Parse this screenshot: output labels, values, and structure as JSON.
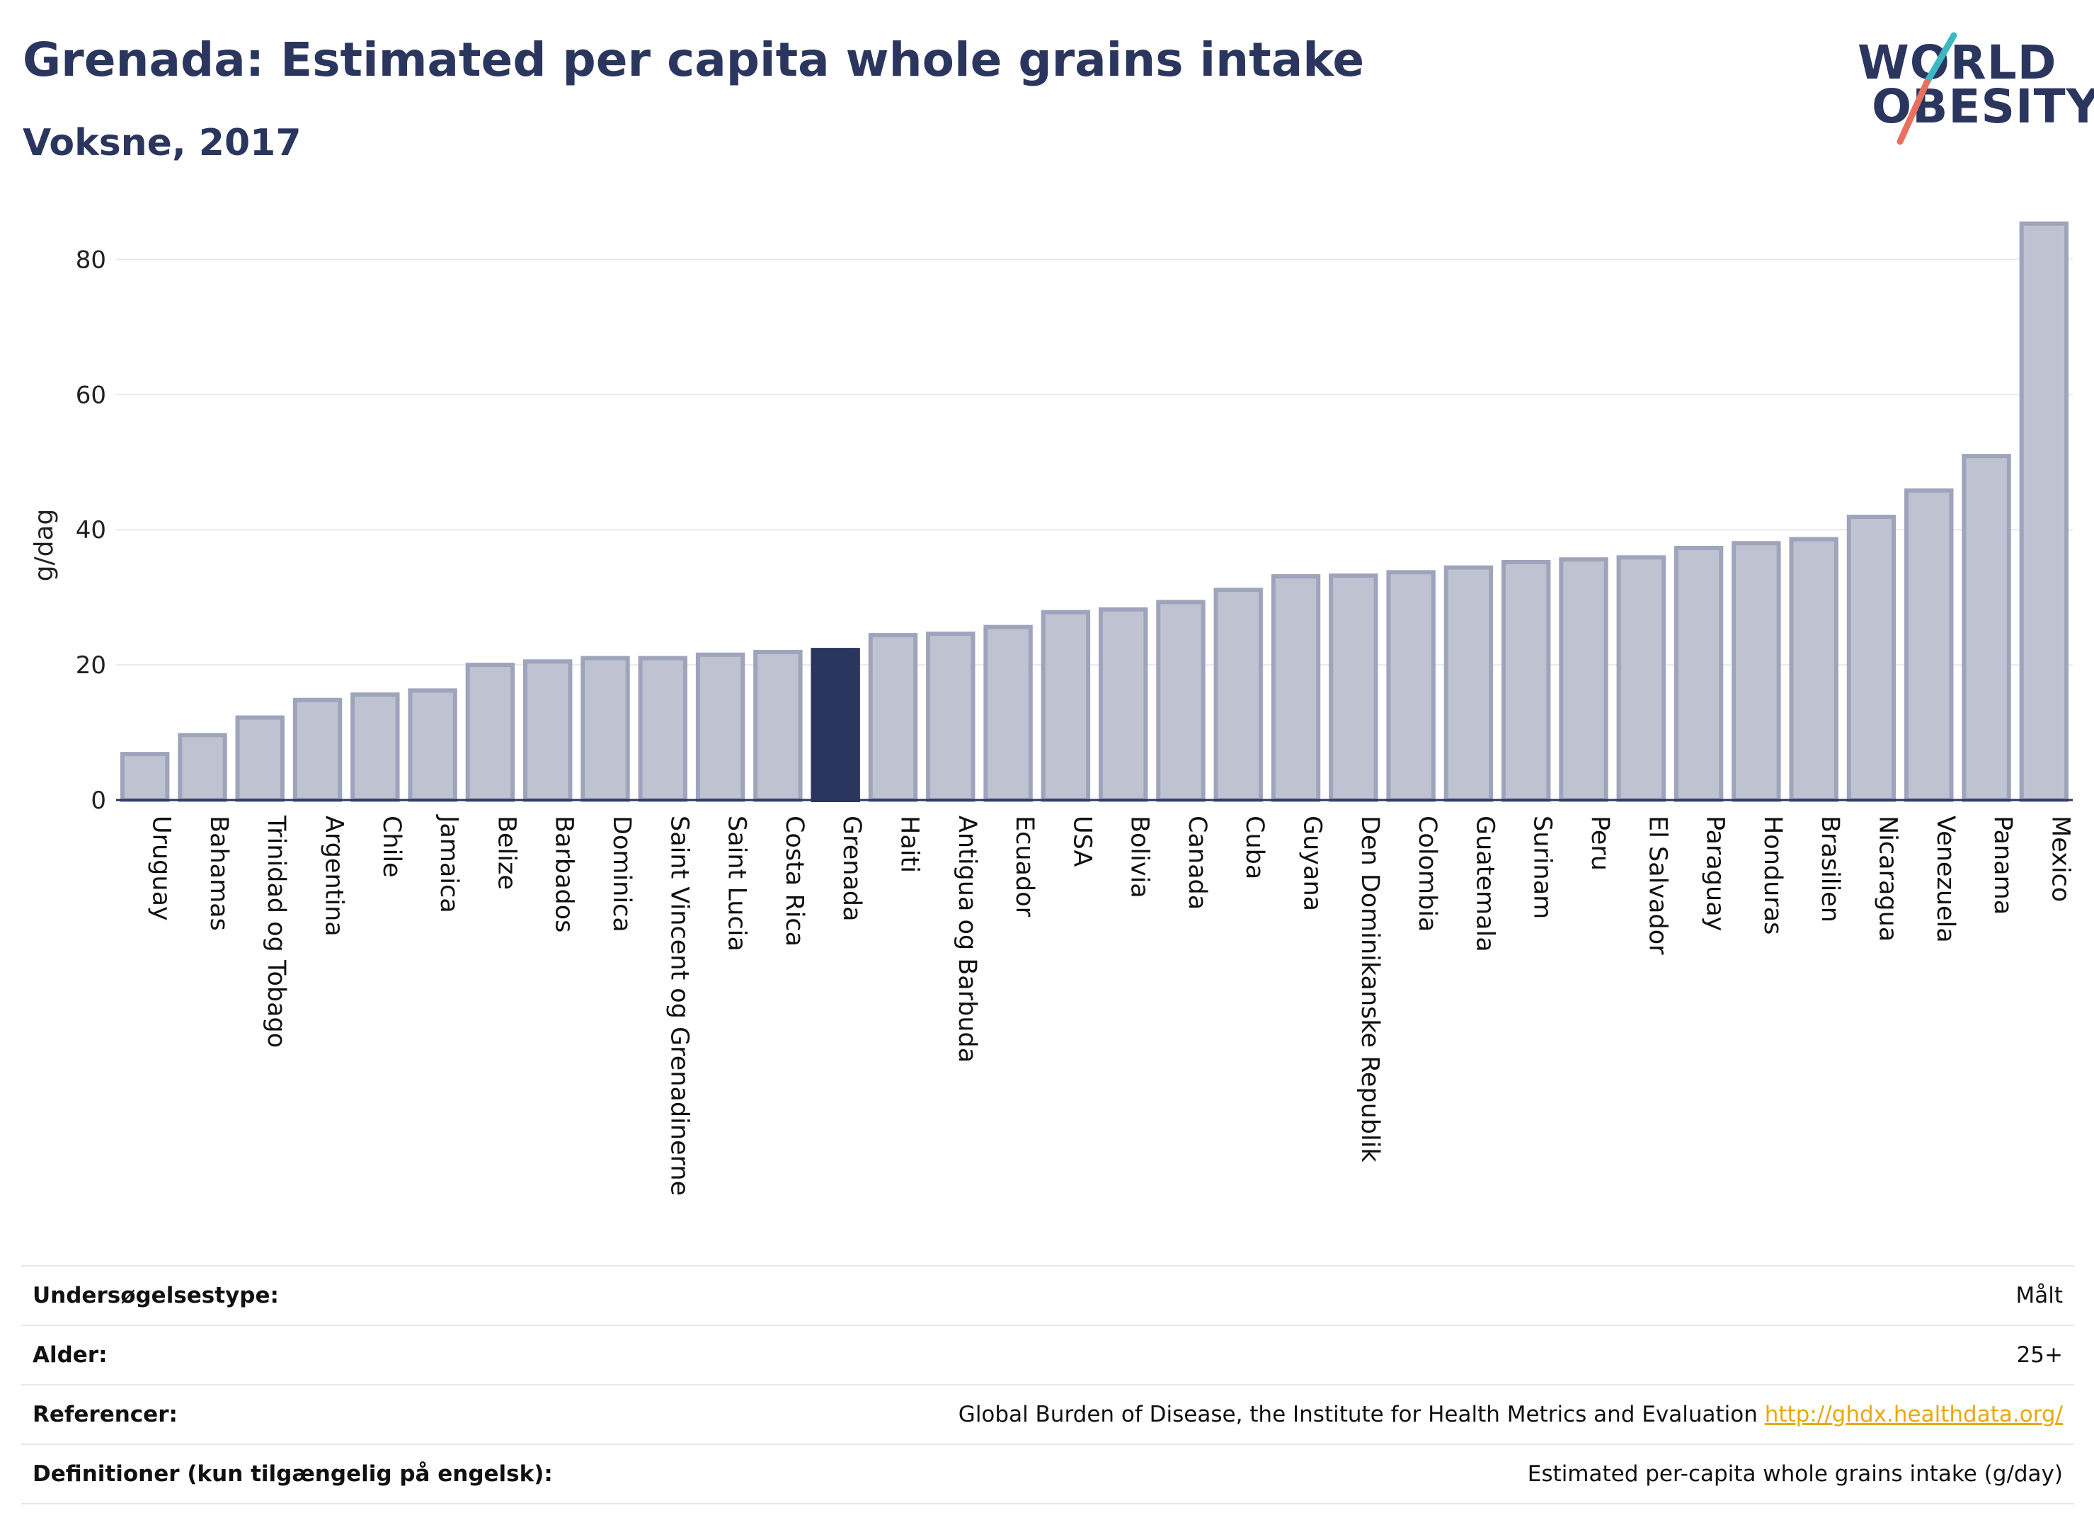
{
  "header": {
    "title": "Grenada: Estimated per capita whole grains intake",
    "subtitle": "Voksne, 2017"
  },
  "logo": {
    "line1": "WORLD",
    "line2": "OBESITY",
    "accent_teal": "#3bb8c4",
    "accent_red": "#e8705f"
  },
  "colors": {
    "bar": "#bfc3d1",
    "bar_stroke": "#9ea4bb",
    "highlight": "#2b365f",
    "gridline": "#e8e9ee",
    "axis": "#2b365f"
  },
  "chart_data": {
    "type": "bar",
    "ylabel": "g/dag",
    "xlabel": "",
    "ylim": [
      0,
      88
    ],
    "yticks": [
      0,
      20,
      40,
      60,
      80
    ],
    "grid": true,
    "highlight": "Grenada",
    "categories": [
      "Uruguay",
      "Bahamas",
      "Trinidad og Tobago",
      "Argentina",
      "Chile",
      "Jamaica",
      "Belize",
      "Barbados",
      "Dominica",
      "Saint Vincent og Grenadinerne",
      "Saint Lucia",
      "Costa Rica",
      "Grenada",
      "Haiti",
      "Antigua og Barbuda",
      "Ecuador",
      "USA",
      "Bolivia",
      "Canada",
      "Cuba",
      "Guyana",
      "Den Dominikanske Republik",
      "Colombia",
      "Guatemala",
      "Surinam",
      "Peru",
      "El Salvador",
      "Paraguay",
      "Honduras",
      "Brasilien",
      "Nicaragua",
      "Venezuela",
      "Panama",
      "Mexico"
    ],
    "values": [
      6.8,
      9.6,
      12.2,
      14.8,
      15.6,
      16.2,
      20.0,
      20.5,
      21.0,
      21.0,
      21.5,
      21.9,
      22.2,
      24.4,
      24.6,
      25.6,
      27.8,
      28.2,
      29.3,
      31.1,
      33.1,
      33.2,
      33.7,
      34.4,
      35.2,
      35.6,
      35.9,
      37.3,
      38.0,
      38.6,
      41.9,
      45.8,
      50.9,
      85.3
    ]
  },
  "meta": {
    "rows": [
      {
        "key": "Undersøgelsestype:",
        "value": "Målt"
      },
      {
        "key": "Alder:",
        "value": "25+"
      },
      {
        "key": "Referencer:",
        "value": "Global Burden of Disease, the Institute for Health Metrics and Evaluation",
        "link": "http://ghdx.healthdata.org/"
      },
      {
        "key": "Definitioner (kun tilgængelig på engelsk):",
        "value": "Estimated per-capita whole grains intake (g/day)"
      }
    ]
  }
}
